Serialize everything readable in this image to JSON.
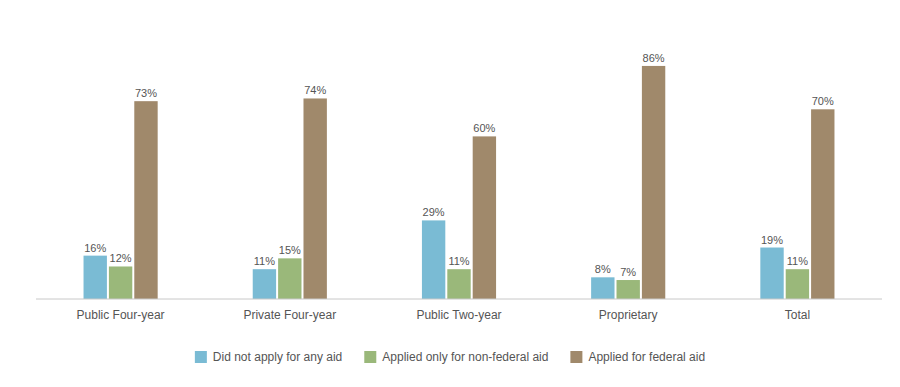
{
  "chart_data": {
    "type": "bar",
    "categories": [
      "Public Four-year",
      "Private Four-year",
      "Public Two-year",
      "Proprietary",
      "Total"
    ],
    "series": [
      {
        "name": "Did not apply for any aid",
        "color": "#7ABBD4",
        "values": [
          16,
          11,
          29,
          8,
          19
        ],
        "value_labels": [
          "16%",
          "11%",
          "29%",
          "8%",
          "19%"
        ]
      },
      {
        "name": "Applied only for non-federal aid",
        "color": "#9AB87A",
        "values": [
          12,
          15,
          11,
          7,
          11
        ],
        "value_labels": [
          "12%",
          "15%",
          "11%",
          "7%",
          "11%"
        ]
      },
      {
        "name": "Applied for federal aid",
        "color": "#A0896B",
        "values": [
          73,
          74,
          60,
          86,
          70
        ],
        "value_labels": [
          "73%",
          "74%",
          "60%",
          "86%",
          "70%"
        ]
      }
    ],
    "ylim": [
      0,
      100
    ],
    "data_labels": true,
    "tick_labels": "x",
    "grid": false,
    "legend": "bottom"
  }
}
